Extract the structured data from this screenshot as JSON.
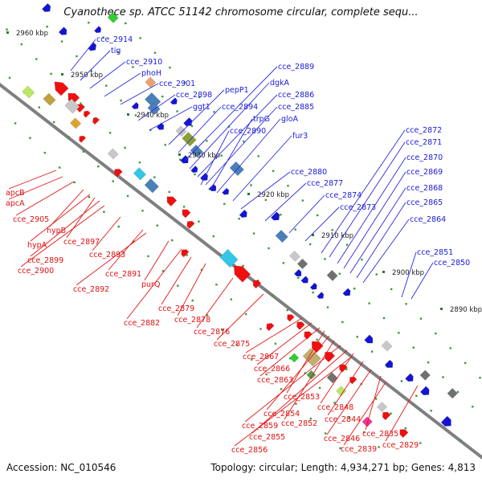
{
  "title": "Cyanothece sp. ATCC 51142 chromosome circular, complete sequ...",
  "footer": {
    "accession": "Accession: NC_010546",
    "summary": "Topology: circular; Length: 4,934,271 bp; Genes: 4,813"
  },
  "colors": {
    "backbone": "#7f7f7f",
    "forward_labels": "#1a1adc",
    "reverse_labels": "#e01010",
    "tick_green": "#2a8a2a"
  },
  "ruler": [
    {
      "label": "2960 kbp"
    },
    {
      "label": "2950 kbp"
    },
    {
      "label": "2940 kbp"
    },
    {
      "label": "2930 kbp"
    },
    {
      "label": "2920 kbp"
    },
    {
      "label": "2910 kbp"
    },
    {
      "label": "2900 kbp"
    },
    {
      "label": "2890 kbp"
    }
  ],
  "forward_genes": [
    {
      "label": "cce_2914"
    },
    {
      "label": "tig"
    },
    {
      "label": "cce_2910"
    },
    {
      "label": "phoH"
    },
    {
      "label": "cce_2901"
    },
    {
      "label": "cce_2898"
    },
    {
      "label": "ggt1"
    },
    {
      "label": "pepP1"
    },
    {
      "label": "cce_2894"
    },
    {
      "label": "cce_2889"
    },
    {
      "label": "dgkA"
    },
    {
      "label": "cce_2886"
    },
    {
      "label": "cce_2885"
    },
    {
      "label": "trpG"
    },
    {
      "label": "cce_2890"
    },
    {
      "label": "gloA"
    },
    {
      "label": "fur3"
    },
    {
      "label": "cce_2880"
    },
    {
      "label": "cce_2877"
    },
    {
      "label": "cce_2874"
    },
    {
      "label": "cce_2873"
    },
    {
      "label": "cce_2872"
    },
    {
      "label": "cce_2871"
    },
    {
      "label": "cce_2870"
    },
    {
      "label": "cce_2869"
    },
    {
      "label": "cce_2868"
    },
    {
      "label": "cce_2865"
    },
    {
      "label": "cce_2864"
    },
    {
      "label": "cce_2851"
    },
    {
      "label": "cce_2850"
    }
  ],
  "reverse_genes": [
    {
      "label": "apcB"
    },
    {
      "label": "apcA"
    },
    {
      "label": "cce_2905"
    },
    {
      "label": "hypB"
    },
    {
      "label": "hypA"
    },
    {
      "label": "cce_2897"
    },
    {
      "label": "cce_2899"
    },
    {
      "label": "cce_2893"
    },
    {
      "label": "cce_2900"
    },
    {
      "label": "cce_2891"
    },
    {
      "label": "cce_2892"
    },
    {
      "label": "purQ"
    },
    {
      "label": "cce_2879"
    },
    {
      "label": "cce_2882"
    },
    {
      "label": "cce_2878"
    },
    {
      "label": "cce_2876"
    },
    {
      "label": "cce_2875"
    },
    {
      "label": "cce_2867"
    },
    {
      "label": "cce_2866"
    },
    {
      "label": "cce_2863"
    },
    {
      "label": "cce_2853"
    },
    {
      "label": "cce_2854"
    },
    {
      "label": "cce_2848"
    },
    {
      "label": "cce_2852"
    },
    {
      "label": "cce_2844"
    },
    {
      "label": "cce_2859"
    },
    {
      "label": "cce_2846"
    },
    {
      "label": "cce_2835"
    },
    {
      "label": "cce_2855"
    },
    {
      "label": "cce_2839"
    },
    {
      "label": "cce_2829"
    },
    {
      "label": "cce_2856"
    }
  ]
}
